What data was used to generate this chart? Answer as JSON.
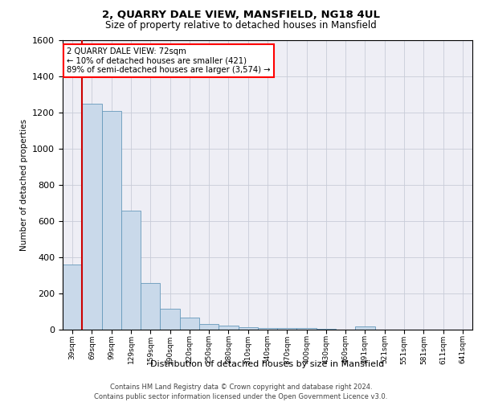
{
  "title": "2, QUARRY DALE VIEW, MANSFIELD, NG18 4UL",
  "subtitle": "Size of property relative to detached houses in Mansfield",
  "xlabel": "Distribution of detached houses by size in Mansfield",
  "ylabel": "Number of detached properties",
  "categories": [
    "39sqm",
    "69sqm",
    "99sqm",
    "129sqm",
    "159sqm",
    "190sqm",
    "220sqm",
    "250sqm",
    "280sqm",
    "310sqm",
    "340sqm",
    "370sqm",
    "400sqm",
    "430sqm",
    "460sqm",
    "491sqm",
    "521sqm",
    "551sqm",
    "581sqm",
    "611sqm",
    "641sqm"
  ],
  "values": [
    360,
    1250,
    1210,
    660,
    260,
    115,
    65,
    30,
    22,
    12,
    8,
    10,
    8,
    3,
    0,
    18,
    0,
    0,
    0,
    0,
    0
  ],
  "bar_color": "#c9d9ea",
  "bar_edge_color": "#6699bb",
  "grid_color": "#c8ccd8",
  "bg_color": "#eeeef5",
  "annotation_box_line1": "2 QUARRY DALE VIEW: 72sqm",
  "annotation_box_line2": "← 10% of detached houses are smaller (421)",
  "annotation_box_line3": "89% of semi-detached houses are larger (3,574) →",
  "vline_color": "#cc0000",
  "ylim": [
    0,
    1600
  ],
  "yticks": [
    0,
    200,
    400,
    600,
    800,
    1000,
    1200,
    1400,
    1600
  ],
  "footer_line1": "Contains HM Land Registry data © Crown copyright and database right 2024.",
  "footer_line2": "Contains public sector information licensed under the Open Government Licence v3.0."
}
